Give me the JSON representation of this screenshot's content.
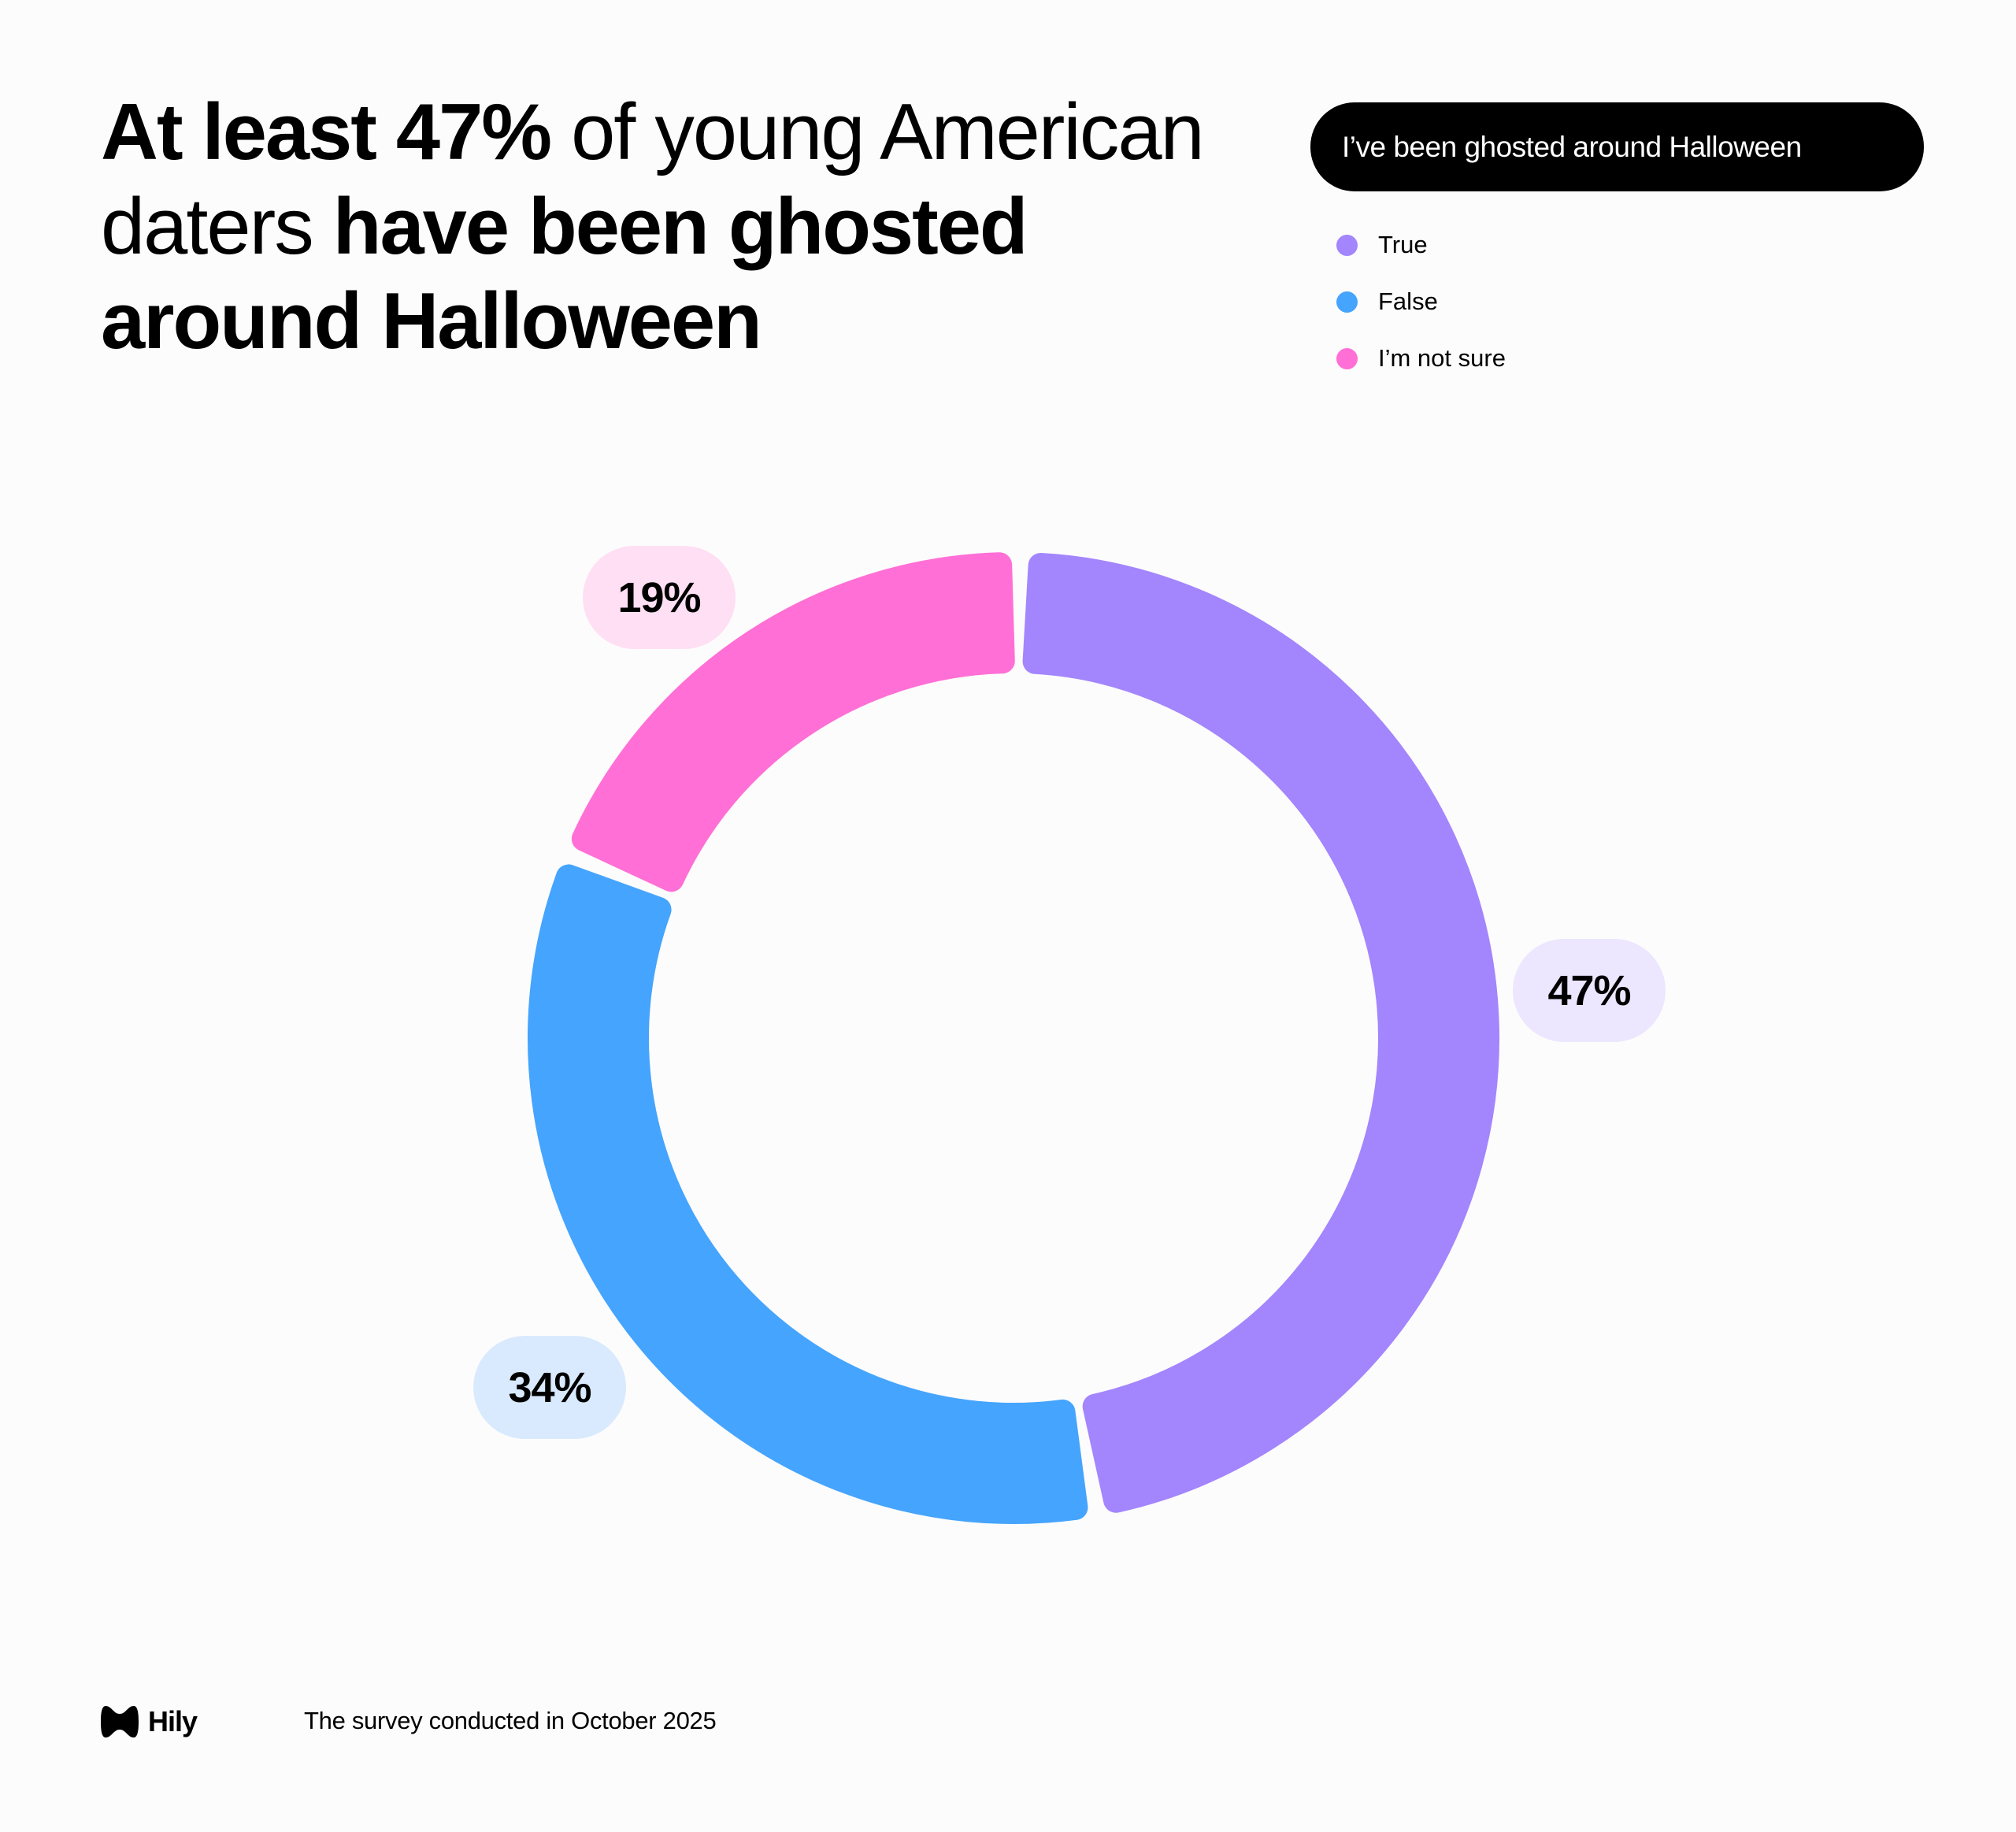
{
  "title": {
    "part1_bold": "At least 47%",
    "part2": " of young American daters ",
    "part3_bold": "have been ghosted around Halloween"
  },
  "chart_data": {
    "type": "pie",
    "variant": "donut",
    "title": "I've been ghosted around Halloween",
    "categories": [
      "True",
      "False",
      "I'm not sure"
    ],
    "values": [
      47,
      34,
      19
    ],
    "labels": [
      "47%",
      "34%",
      "19%"
    ],
    "colors": [
      "#a385fd",
      "#45a4fd",
      "#ff6fd6"
    ],
    "label_bg_colors": [
      "#ece6fe",
      "#d9eafe",
      "#ffdff3"
    ],
    "legend_position": "top-right"
  },
  "legend": {
    "header": "I’ve been ghosted around Halloween",
    "items": [
      "True",
      "False",
      "I’m not sure"
    ]
  },
  "footer": {
    "brand": "Hily",
    "note": "The survey conducted in October 2025"
  }
}
